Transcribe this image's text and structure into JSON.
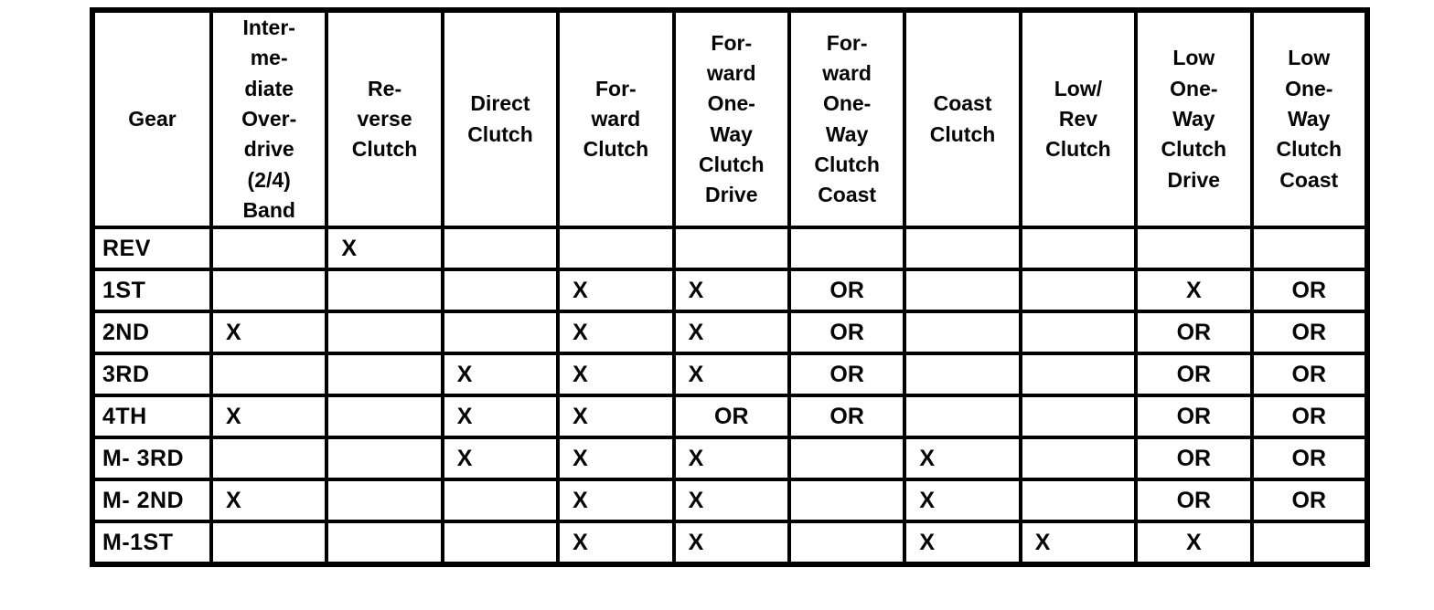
{
  "table": {
    "columns": [
      "Gear",
      "Inter-\nme-\ndiate\nOver-\ndrive\n(2/4)\nBand",
      "Re-\nverse\nClutch",
      "Direct\nClutch",
      "For-\nward\nClutch",
      "For-\nward\nOne-\nWay\nClutch\nDrive",
      "For-\nward\nOne-\nWay\nClutch\nCoast",
      "Coast\nClutch",
      "Low/\nRev\nClutch",
      "Low\nOne-\nWay\nClutch\nDrive",
      "Low\nOne-\nWay\nClutch\nCoast"
    ],
    "rows": [
      {
        "gear": "REV",
        "cells": [
          "",
          "X",
          "",
          "",
          "",
          "",
          "",
          "",
          "",
          ""
        ]
      },
      {
        "gear": "1ST",
        "cells": [
          "",
          "",
          "",
          "X",
          "X",
          "OR",
          "",
          "",
          "X",
          "OR"
        ]
      },
      {
        "gear": "2ND",
        "cells": [
          "X",
          "",
          "",
          "X",
          "X",
          "OR",
          "",
          "",
          "OR",
          "OR"
        ]
      },
      {
        "gear": "3RD",
        "cells": [
          "",
          "",
          "X",
          "X",
          "X",
          "OR",
          "",
          "",
          "OR",
          "OR"
        ]
      },
      {
        "gear": "4TH",
        "cells": [
          "X",
          "",
          "X",
          "X",
          "OR",
          "OR",
          "",
          "",
          "OR",
          "OR"
        ]
      },
      {
        "gear": "M- 3RD",
        "cells": [
          "",
          "",
          "X",
          "X",
          "X",
          "",
          "X",
          "",
          "OR",
          "OR"
        ]
      },
      {
        "gear": "M- 2ND",
        "cells": [
          "X",
          "",
          "",
          "X",
          "X",
          "",
          "X",
          "",
          "OR",
          "OR"
        ]
      },
      {
        "gear": "M-1ST",
        "cells": [
          "",
          "",
          "",
          "X",
          "X",
          "",
          "X",
          "X",
          "X",
          ""
        ]
      }
    ],
    "rev_row_low_rev_value": "X",
    "marks": {
      "applied": "X",
      "alternate": "OR"
    },
    "ink_color": "#050505",
    "paper_color": "#ffffff"
  }
}
